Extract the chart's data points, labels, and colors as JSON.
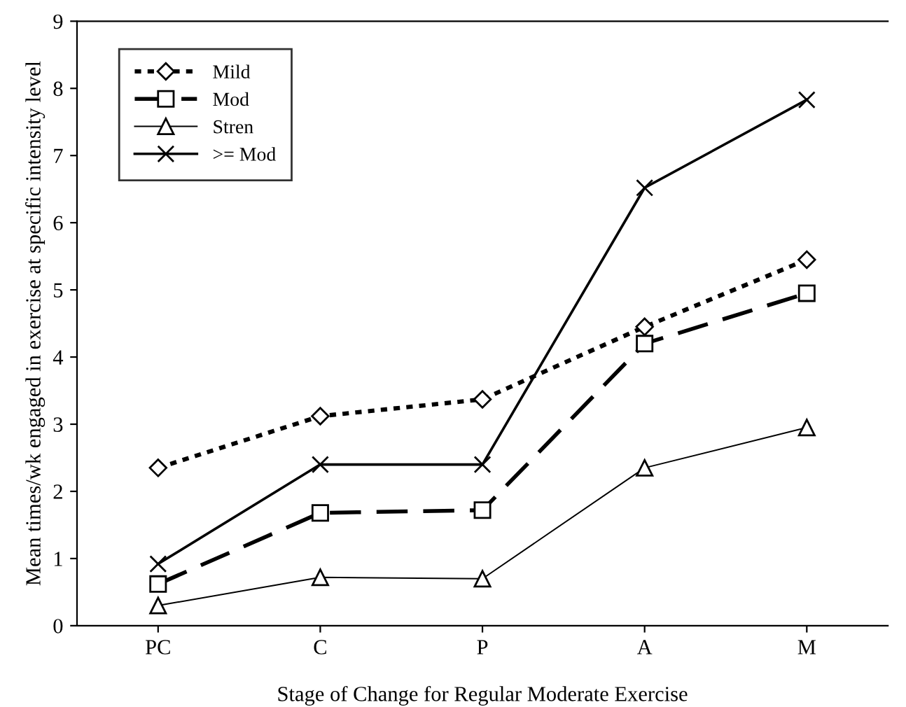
{
  "chart_data": {
    "type": "line",
    "xlabel": "Stage of Change for Regular Moderate Exercise",
    "ylabel": "Mean times/wk engaged in exercise at specific intensity level",
    "categories": [
      "PC",
      "C",
      "P",
      "A",
      "M"
    ],
    "series": [
      {
        "name": "Mild",
        "color": "#000000",
        "values": [
          2.35,
          3.12,
          3.37,
          4.45,
          5.45
        ],
        "line_style": "dotted",
        "marker": "diamond"
      },
      {
        "name": "Mod",
        "color": "#000000",
        "values": [
          0.62,
          1.68,
          1.72,
          4.2,
          4.95
        ],
        "line_style": "dashed",
        "marker": "square"
      },
      {
        "name": "Stren",
        "color": "#000000",
        "values": [
          0.3,
          0.72,
          0.7,
          2.35,
          2.95
        ],
        "line_style": "solid",
        "marker": "triangle"
      },
      {
        "name": ">= Mod",
        "color": "#000000",
        "values": [
          0.92,
          2.4,
          2.4,
          6.52,
          7.83
        ],
        "line_style": "solid",
        "marker": "cross"
      }
    ],
    "ylim": [
      0,
      9
    ],
    "yticks": [
      0,
      1,
      2,
      3,
      4,
      5,
      6,
      7,
      8,
      9
    ],
    "grid": false,
    "legend": "top left"
  }
}
